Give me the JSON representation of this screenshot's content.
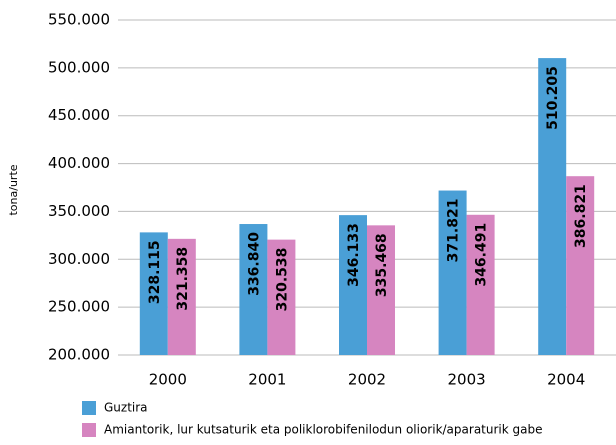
{
  "chart_data": {
    "type": "bar",
    "y_label": "tona/urte",
    "categories": [
      "2000",
      "2001",
      "2002",
      "2003",
      "2004"
    ],
    "series": [
      {
        "name": "Guztira",
        "color": "#4a9fd6",
        "values": [
          328115,
          336840,
          346133,
          371821,
          510205
        ],
        "value_labels": [
          "328.115",
          "336.840",
          "346.133",
          "371.821",
          "510.205"
        ]
      },
      {
        "name": "Amiantorik, lur kutsaturik eta poliklorobifenilodun oliorik/aparaturik gabe",
        "color": "#d685c0",
        "values": [
          321358,
          320538,
          335468,
          346491,
          386821
        ],
        "value_labels": [
          "321.358",
          "320.538",
          "335.468",
          "346.491",
          "386.821"
        ]
      }
    ],
    "ylim": [
      200000,
      550000
    ],
    "yticks": [
      {
        "value": 200000,
        "label": "200.000"
      },
      {
        "value": 250000,
        "label": "250.000"
      },
      {
        "value": 300000,
        "label": "300.000"
      },
      {
        "value": 350000,
        "label": "350.000"
      },
      {
        "value": 400000,
        "label": "400.000"
      },
      {
        "value": 450000,
        "label": "450.000"
      },
      {
        "value": 500000,
        "label": "500.000"
      },
      {
        "value": 550000,
        "label": "550.000"
      }
    ],
    "grid": true
  }
}
